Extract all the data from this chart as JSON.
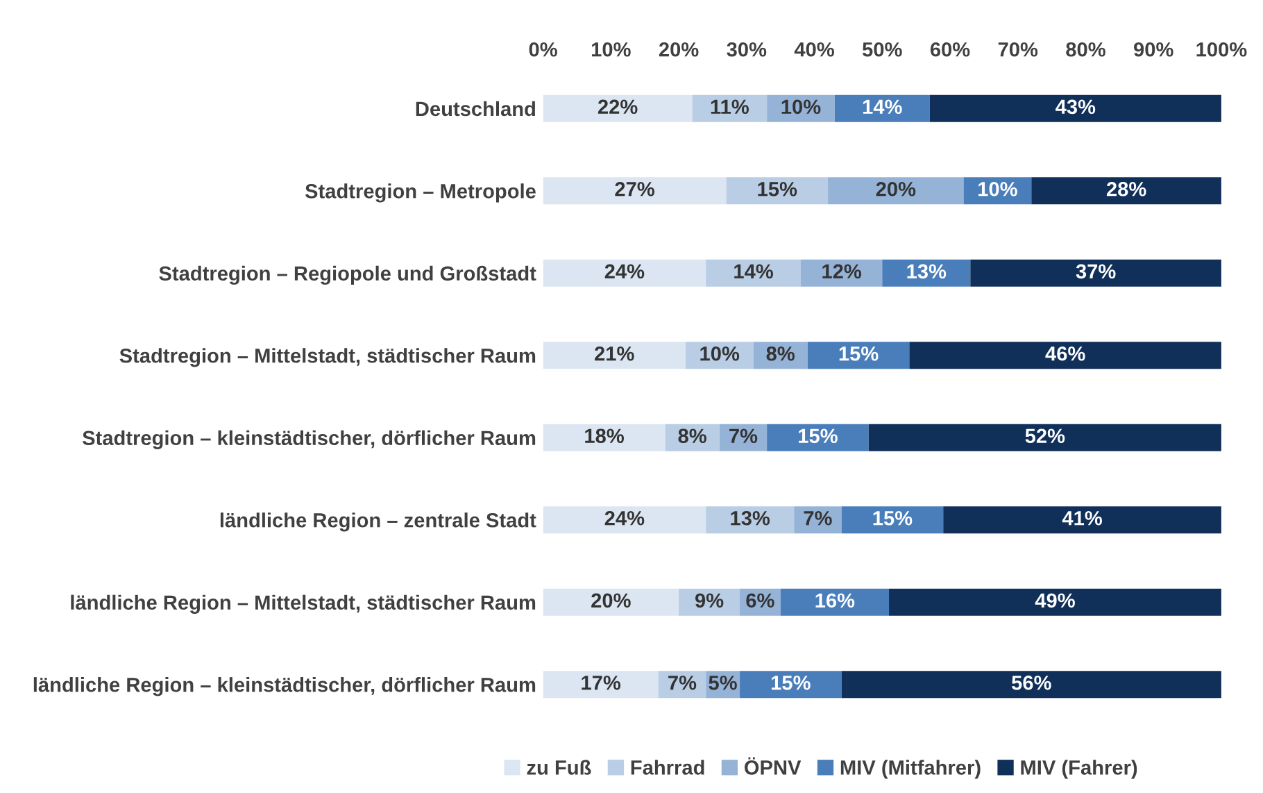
{
  "chart_data": {
    "type": "bar",
    "orientation": "horizontal",
    "stacked": true,
    "categories": [
      "Deutschland",
      "Stadtregion – Metropole",
      "Stadtregion – Regiopole und Großstadt",
      "Stadtregion – Mittelstadt, städtischer Raum",
      "Stadtregion – kleinstädtischer, dörflicher Raum",
      "ländliche Region – zentrale Stadt",
      "ländliche Region – Mittelstadt, städtischer Raum",
      "ländliche Region – kleinstädtischer, dörflicher Raum"
    ],
    "series": [
      {
        "name": "zu Fuß",
        "color": "#dce6f2",
        "values": [
          22,
          27,
          24,
          21,
          18,
          24,
          20,
          17
        ],
        "value_labels": [
          "22%",
          "27%",
          "24%",
          "21%",
          "18%",
          "24%",
          "20%",
          "17%"
        ]
      },
      {
        "name": "Fahrrad",
        "color": "#b9cde5",
        "values": [
          11,
          15,
          14,
          10,
          8,
          13,
          9,
          7
        ],
        "value_labels": [
          "11%",
          "15%",
          "14%",
          "10%",
          "8%",
          "13%",
          "9%",
          "7%"
        ]
      },
      {
        "name": "ÖPNV",
        "color": "#95b3d7",
        "values": [
          10,
          20,
          12,
          8,
          7,
          7,
          6,
          5
        ],
        "value_labels": [
          "10%",
          "20%",
          "12%",
          "8%",
          "7%",
          "7%",
          "6%",
          "5%"
        ]
      },
      {
        "name": "MIV (Mitfahrer)",
        "color": "#4a7ebb",
        "values": [
          14,
          10,
          13,
          15,
          15,
          15,
          16,
          15
        ],
        "value_labels": [
          "14%",
          "10%",
          "13%",
          "15%",
          "15%",
          "15%",
          "16%",
          "15%"
        ]
      },
      {
        "name": "MIV (Fahrer)",
        "color": "#10305a",
        "values": [
          43,
          28,
          37,
          46,
          52,
          41,
          49,
          56
        ],
        "value_labels": [
          "43%",
          "28%",
          "37%",
          "46%",
          "52%",
          "41%",
          "49%",
          "56%"
        ]
      }
    ],
    "xlim": [
      0,
      100
    ],
    "xticks": [
      {
        "value": 0,
        "label": "0%"
      },
      {
        "value": 10,
        "label": "10%"
      },
      {
        "value": 20,
        "label": "20%"
      },
      {
        "value": 30,
        "label": "30%"
      },
      {
        "value": 40,
        "label": "40%"
      },
      {
        "value": 50,
        "label": "50%"
      },
      {
        "value": 60,
        "label": "60%"
      },
      {
        "value": 70,
        "label": "70%"
      },
      {
        "value": 80,
        "label": "80%"
      },
      {
        "value": 90,
        "label": "90%"
      },
      {
        "value": 100,
        "label": "100%"
      }
    ],
    "grid": false,
    "legend": "bottom"
  }
}
